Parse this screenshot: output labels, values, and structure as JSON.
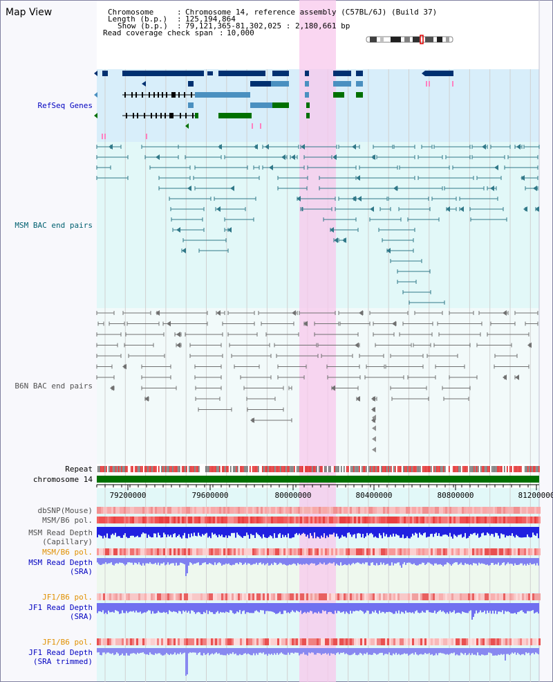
{
  "title": "Map View",
  "header": {
    "chromosome_key": "Chromosome",
    "chromosome_val": "Chromosome 14, reference assembly (C57BL/6J) (Build 37)",
    "length_key": "Length (b.p.)",
    "length_val": "125,194,864",
    "show_key": "Show (b.p.)",
    "show_val": "79,121,365-81,302,025 : 2,180,661 bp",
    "span_key": "Read coverage check span",
    "span_val": "10,000"
  },
  "tracks": {
    "refseq": "RefSeq Genes",
    "msm_bac": "MSM BAC end pairs",
    "b6n_bac": "B6N BAC end pairs",
    "repeat": "Repeat",
    "chromosome": "chromosome 14",
    "dbsnp": "dbSNP(Mouse)",
    "msm_b6_pol": "MSM/B6 pol.",
    "msm_depth_cap_1": "MSM Read Depth",
    "msm_depth_cap_2": "(Capillary)",
    "msm_b6_pol2": "MSM/B6 pol.",
    "msm_depth_sra_1": "MSM Read Depth",
    "msm_depth_sra_2": "(SRA)",
    "jf1_b6_pol": "JF1/B6 pol.",
    "jf1_depth_1": "JF1 Read Depth",
    "jf1_depth_2": "(SRA)",
    "jf1_b6_pol2": "JF1/B6 pol.",
    "jf1_trim_1": "JF1 Read Depth",
    "jf1_trim_2": "(SRA trimmed)"
  },
  "axis": {
    "ticks": [
      "79200000",
      "79600000",
      "80000000",
      "80400000",
      "80800000",
      "81200000"
    ]
  },
  "colors": {
    "refseq_bg": "#d8eefa",
    "msm_bg": "#e2f8f8",
    "b6n_bg": "#eef8f8",
    "highlight": "#f8d8f0",
    "chrom_bar": "#007000",
    "label_blue": "#0000c0",
    "label_orange": "#e09000",
    "label_teal": "#006070"
  }
}
